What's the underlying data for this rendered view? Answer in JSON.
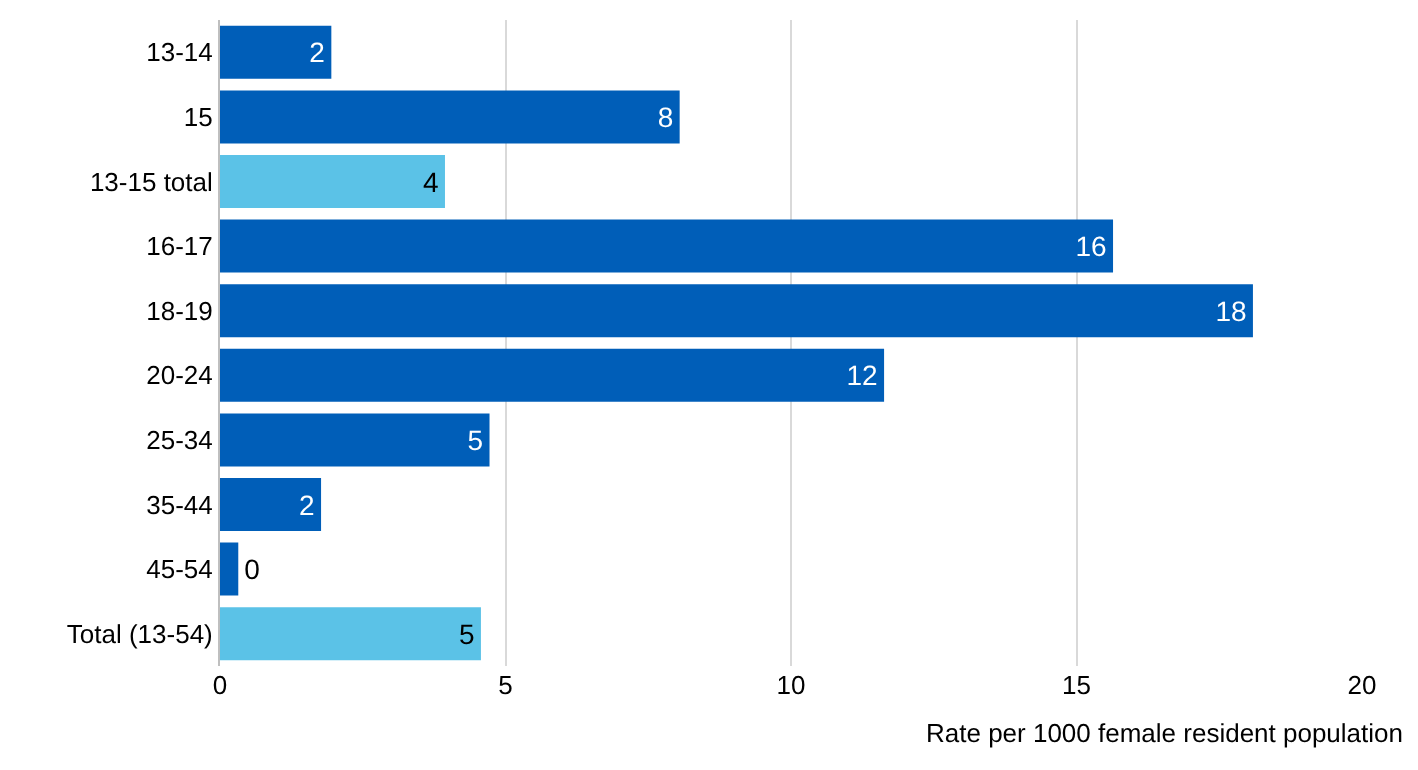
{
  "chart_data": {
    "type": "bar",
    "orientation": "horizontal",
    "categories": [
      "13-14",
      "15",
      "13-15 total",
      "16-17",
      "18-19",
      "20-24",
      "25-34",
      "35-44",
      "45-54",
      "Total (13-54)"
    ],
    "values": [
      1.95,
      8.05,
      3.94,
      15.64,
      18.09,
      11.63,
      4.72,
      1.77,
      0.32,
      4.57
    ],
    "value_labels": [
      "2",
      "8",
      "4",
      "16",
      "18",
      "12",
      "5",
      "2",
      "0",
      "5"
    ],
    "colors": [
      "#005eb8",
      "#005eb8",
      "#5bc2e7",
      "#005eb8",
      "#005eb8",
      "#005eb8",
      "#005eb8",
      "#005eb8",
      "#005eb8",
      "#5bc2e7"
    ],
    "xlim": [
      0,
      20
    ],
    "xticks": [
      0,
      5,
      10,
      15,
      20
    ],
    "xlabel": "Rate per 1000 female resident population",
    "grid": "x"
  }
}
